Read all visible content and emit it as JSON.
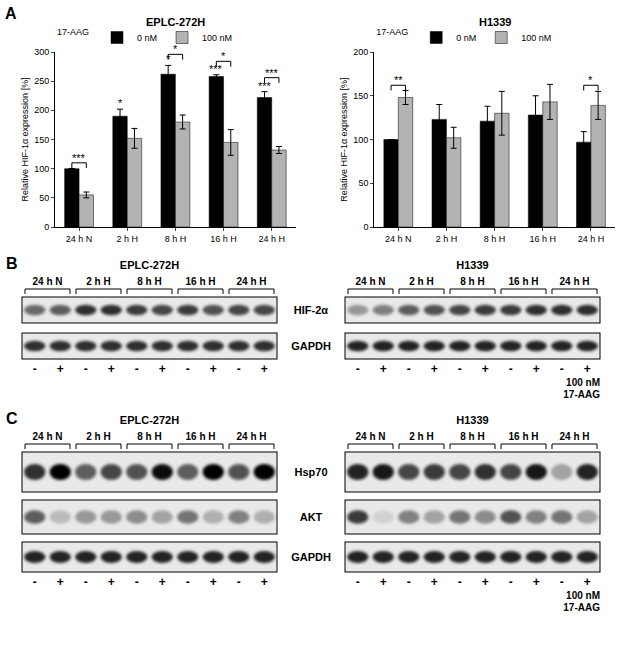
{
  "panel": "A",
  "chart_data": [
    {
      "type": "bar",
      "title": "EPLC-272H",
      "y_label": "Relative HIF-1α expression [%]",
      "legend_title": "17-AAG",
      "legend": "top left",
      "grid": false,
      "categories": [
        "24 h N",
        "2 h H",
        "8 h H",
        "16 h H",
        "24 h H"
      ],
      "series": [
        {
          "name": "0 nM",
          "color": "#000000",
          "values": [
            100,
            190,
            262,
            258,
            222
          ],
          "errors": [
            0,
            12,
            15,
            3,
            10
          ]
        },
        {
          "name": "100 nM",
          "color": "#b3b3b3",
          "values": [
            55,
            152,
            180,
            145,
            132
          ],
          "errors": [
            5,
            17,
            12,
            22,
            6
          ]
        }
      ],
      "ylim": [
        0,
        300
      ],
      "yticks": [
        0,
        50,
        100,
        150,
        200,
        250,
        300
      ],
      "markers": [
        {
          "category": "2 h H",
          "series": "0 nM",
          "y": 204,
          "text": "*"
        },
        {
          "category": "8 h H",
          "series": "0 nM",
          "y": 279,
          "text": "*"
        },
        {
          "category": "16 h H",
          "series": "0 nM",
          "y": 263,
          "text": "***"
        },
        {
          "category": "24 h H",
          "series": "0 nM",
          "y": 234,
          "text": "***"
        }
      ],
      "brackets": [
        {
          "category": "24 h N",
          "y": 110,
          "text": "***"
        },
        {
          "category": "8 h H",
          "y": 296,
          "text": "*"
        },
        {
          "category": "16 h H",
          "y": 284,
          "text": "*"
        },
        {
          "category": "24 h H",
          "y": 256,
          "text": "***"
        }
      ]
    },
    {
      "type": "bar",
      "title": "H1339",
      "y_label": "Relative HIF-1α expression [%]",
      "legend_title": "17-AAG",
      "legend": "top left",
      "grid": false,
      "categories": [
        "24 h N",
        "2 h H",
        "8 h H",
        "16 h H",
        "24 h H"
      ],
      "series": [
        {
          "name": "0 nM",
          "color": "#000000",
          "values": [
            100,
            123,
            121,
            128,
            97
          ],
          "errors": [
            0,
            17,
            17,
            22,
            12
          ]
        },
        {
          "name": "100 nM",
          "color": "#b3b3b3",
          "values": [
            148,
            102,
            130,
            143,
            139
          ],
          "errors": [
            8,
            12,
            25,
            20,
            16
          ]
        }
      ],
      "ylim": [
        0,
        200
      ],
      "yticks": [
        0,
        50,
        100,
        150,
        200
      ],
      "markers": [],
      "brackets": [
        {
          "category": "24 h N",
          "y": 162,
          "text": "**"
        },
        {
          "category": "24 h H",
          "y": 162,
          "text": "*"
        }
      ]
    }
  ],
  "blots": [
    {
      "panel": "B",
      "groups": [
        "24 h N",
        "2 h H",
        "8 h H",
        "16 h H",
        "24 h H"
      ],
      "rows": [
        "HIF-2α",
        "GAPDH"
      ],
      "signs": [
        "-",
        "+"
      ],
      "treatment": [
        "100 nM",
        "17-AAG"
      ],
      "cell_lines": [
        {
          "name": "EPLC-272H",
          "intensity": [
            [
              0.55,
              0.6,
              0.8,
              0.8,
              0.75,
              0.7,
              0.75,
              0.65,
              0.7,
              0.7
            ],
            [
              0.8,
              0.8,
              0.8,
              0.8,
              0.8,
              0.8,
              0.8,
              0.8,
              0.8,
              0.8
            ]
          ]
        },
        {
          "name": "H1339",
          "intensity": [
            [
              0.35,
              0.45,
              0.6,
              0.65,
              0.7,
              0.75,
              0.75,
              0.8,
              0.8,
              0.8
            ],
            [
              0.85,
              0.85,
              0.85,
              0.85,
              0.85,
              0.85,
              0.85,
              0.85,
              0.85,
              0.85
            ]
          ]
        }
      ]
    },
    {
      "panel": "C",
      "groups": [
        "24 h N",
        "2 h H",
        "8 h H",
        "16 h H",
        "24 h H"
      ],
      "rows": [
        "Hsp70",
        "AKT",
        "GAPDH"
      ],
      "signs": [
        "-",
        "+"
      ],
      "treatment": [
        "100 nM",
        "17-AAG"
      ],
      "cell_lines": [
        {
          "name": "EPLC-272H",
          "intensity": [
            [
              0.8,
              1,
              0.6,
              0.7,
              0.65,
              0.95,
              0.6,
              1,
              0.65,
              1
            ],
            [
              0.6,
              0.2,
              0.35,
              0.35,
              0.4,
              0.3,
              0.5,
              0.25,
              0.45,
              0.25
            ],
            [
              0.85,
              0.85,
              0.85,
              0.85,
              0.85,
              0.85,
              0.85,
              0.85,
              0.85,
              0.85
            ]
          ]
        },
        {
          "name": "H1339",
          "intensity": [
            [
              0.85,
              0.9,
              0.7,
              0.75,
              0.7,
              0.8,
              0.7,
              0.9,
              0.3,
              0.85
            ],
            [
              0.75,
              0.1,
              0.45,
              0.3,
              0.5,
              0.4,
              0.65,
              0.45,
              0.5,
              0.3
            ],
            [
              0.85,
              0.85,
              0.85,
              0.85,
              0.85,
              0.85,
              0.85,
              0.85,
              0.85,
              0.85
            ]
          ]
        }
      ]
    }
  ]
}
